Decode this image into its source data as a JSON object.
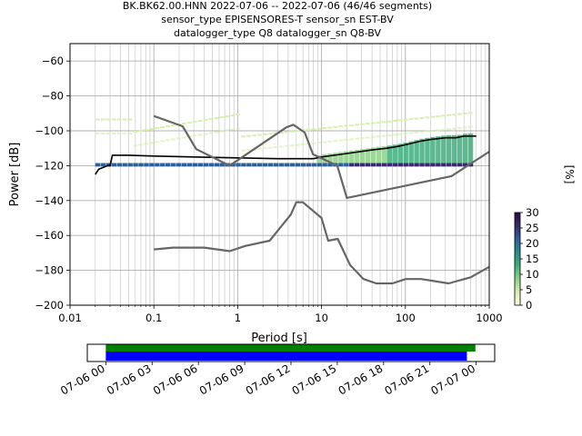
{
  "title": {
    "line1": "BK.BK62.00.HNN   2022-07-06 -- 2022-07-06  (46/46 segments)",
    "line2": "sensor_type EPISENSORES-T sensor_sn EST-BV",
    "line3": "datalogger_type Q8 datalogger_sn Q8-BV"
  },
  "colorbar": {
    "label": "[%]",
    "ticks": [
      "0",
      "5",
      "10",
      "15",
      "20",
      "25",
      "30"
    ],
    "tick_values": [
      0,
      5,
      10,
      15,
      20,
      25,
      30
    ],
    "range": [
      0,
      30
    ],
    "stops": [
      "#ffffe0",
      "#d9efb0",
      "#8fd18a",
      "#3fae7e",
      "#2a8c8c",
      "#2d5f99",
      "#3b2a6e",
      "#2b0a3d"
    ]
  },
  "chart_data": [
    {
      "type": "heatmap",
      "description_type": "probabilistic power spectral density",
      "xlabel": "Period [s]",
      "ylabel": "Power [dB]",
      "xscale": "log",
      "xlim": [
        0.01,
        1000
      ],
      "ylim": [
        -200,
        -50
      ],
      "x_ticks": [
        0.01,
        0.1,
        1,
        10,
        100,
        1000
      ],
      "x_tick_labels": [
        "0.01",
        "0.1",
        "1",
        "10",
        "100",
        "1000"
      ],
      "y_ticks": [
        -200,
        -180,
        -160,
        -140,
        -120,
        -100,
        -80,
        -60
      ],
      "y_tick_labels": [
        "−200",
        "−180",
        "−160",
        "−140",
        "−120",
        "−100",
        "−80",
        "−60"
      ],
      "grid": true,
      "series": [
        {
          "name": "",
          "role": "mode",
          "color": "#000000",
          "x": [
            0.02,
            0.022,
            0.025,
            0.028,
            0.03,
            0.032,
            0.05,
            0.1,
            0.3,
            1,
            3,
            5,
            8,
            10,
            20,
            40,
            60,
            80,
            100,
            150,
            200,
            300,
            400,
            500,
            700
          ],
          "y": [
            -125,
            -122,
            -121,
            -120,
            -120,
            -114,
            -114,
            -114.5,
            -115,
            -115.5,
            -116,
            -116,
            -116,
            -115,
            -113,
            -111,
            -110,
            -109,
            -108,
            -106,
            -105,
            -104,
            -104,
            -103,
            -103
          ]
        },
        {
          "name": "",
          "role": "low-noise model",
          "color": "#666666",
          "x": [
            0.1,
            0.17,
            0.4,
            0.8,
            1.24,
            2.4,
            4.3,
            5,
            6,
            10,
            12,
            15.6,
            21.9,
            31.6,
            45,
            70,
            101,
            154,
            328,
            600,
            1000
          ],
          "y": [
            -168,
            -167,
            -167,
            -169,
            -166,
            -163,
            -148,
            -141,
            -141,
            -150,
            -163,
            -162,
            -177,
            -185,
            -187.5,
            -187.5,
            -185,
            -185,
            -187.5,
            -184,
            -178
          ]
        },
        {
          "name": "",
          "role": "high-noise model",
          "color": "#666666",
          "x": [
            0.1,
            0.22,
            0.32,
            0.8,
            3.8,
            4.6,
            6.3,
            7.9,
            15.4,
            20,
            354.8,
            1000
          ],
          "y": [
            -91.5,
            -97.4,
            -110.5,
            -120,
            -98,
            -96.5,
            -101,
            -113.5,
            -120,
            -138.5,
            -126,
            -112
          ]
        }
      ]
    },
    {
      "type": "bar",
      "role": "data availability",
      "x_tick_labels": [
        "07-06 00",
        "07-06 03",
        "07-06 06",
        "07-06 09",
        "07-06 12",
        "07-06 15",
        "07-06 18",
        "07-06 21",
        "07-07 00"
      ],
      "x_tick_hours": [
        0,
        3,
        6,
        9,
        12,
        15,
        18,
        21,
        24
      ],
      "xlim_hours": [
        -1.2,
        25.2
      ],
      "series": [
        {
          "name": "",
          "color": "#008000",
          "start_hour": 0,
          "end_hour": 23.95
        },
        {
          "name": "",
          "color": "#0000ff",
          "start_hour": 0,
          "end_hour": 23.4
        }
      ]
    }
  ]
}
